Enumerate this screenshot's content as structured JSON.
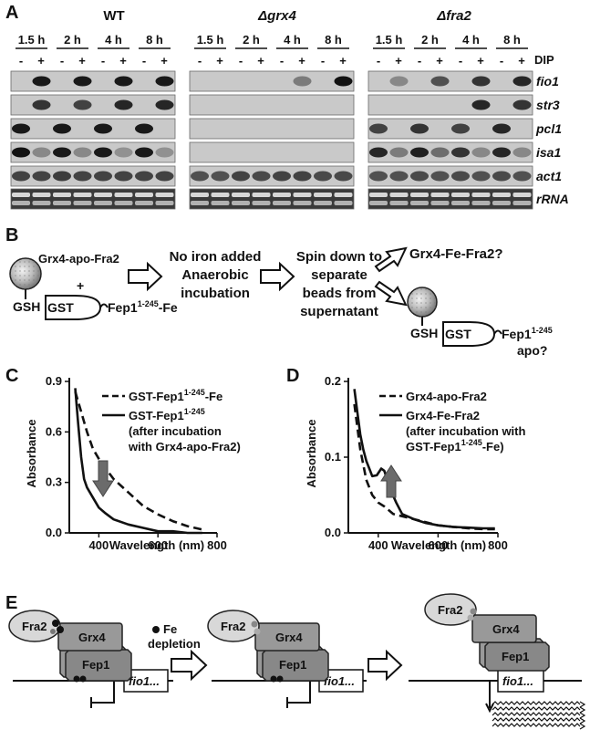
{
  "panel_a": {
    "label": "A",
    "strains": [
      "WT",
      "Δgrx4",
      "Δfra2"
    ],
    "time_points": [
      "1.5 h",
      "2 h",
      "4 h",
      "8 h"
    ],
    "treatment_signs": [
      "-",
      "+"
    ],
    "treatment_label": "DIP",
    "genes": [
      "fio1",
      "str3",
      "pcl1",
      "isa1",
      "act1",
      "rRNA"
    ]
  },
  "panel_b": {
    "label": "B",
    "complex_top": "Grx4-apo-Fra2",
    "plus": "+",
    "gsh": "GSH",
    "gst": "GST",
    "fep_left": "Fep1",
    "fep_left_sup": "1-245",
    "fep_left_suffix": "-Fe",
    "step1_line1": "No iron added",
    "step1_line2": "Anaerobic",
    "step1_line3": "incubation",
    "step2_line1": "Spin down to",
    "step2_line2": "separate",
    "step2_line3": "beads from",
    "step2_line4": "supernatant",
    "outcome1": "Grx4-Fe-Fra2?",
    "fep_right": "Fep1",
    "fep_right_sup": "1-245",
    "outcome2_suffix": "apo?"
  },
  "panel_c": {
    "label": "C",
    "legend_dashed_main": "GST-Fep1",
    "legend_dashed_sup": "1-245",
    "legend_dashed_suffix": "-Fe",
    "legend_solid_line1_main": "GST-Fep1",
    "legend_solid_line1_sup": "1-245",
    "legend_solid_line2": "(after incubation",
    "legend_solid_line3": "with Grx4-apo-Fra2)",
    "y_ticks": [
      "0.0",
      "0.3",
      "0.6",
      "0.9"
    ],
    "x_ticks": [
      "400",
      "600",
      "800"
    ]
  },
  "panel_d": {
    "label": "D",
    "legend_dashed": "Grx4-apo-Fra2",
    "legend_solid_line1": "Grx4-Fe-Fra2",
    "legend_solid_line2": "(after incubation with",
    "legend_solid_line3_main": "GST-Fep1",
    "legend_solid_line3_sup": "1-245",
    "legend_solid_line3_suffix": "-Fe)",
    "y_ticks": [
      "0.0",
      "0.1",
      "0.2"
    ],
    "x_ticks": [
      "400",
      "600",
      "800"
    ]
  },
  "panel_e": {
    "label": "E",
    "fra2": "Fra2",
    "grx4": "Grx4",
    "fep1": "Fep1",
    "fio1": "fio1...",
    "fe_label": "Fe",
    "depletion_label": "depletion"
  },
  "chart_data": [
    {
      "type": "line",
      "panel": "C",
      "xlabel": "Wavelength (nm)",
      "ylabel": "Absorbance",
      "xlim": [
        300,
        800
      ],
      "ylim": [
        0,
        0.9
      ],
      "x_ticks": [
        400,
        600,
        800
      ],
      "y_ticks": [
        0.0,
        0.3,
        0.6,
        0.9
      ],
      "series": [
        {
          "name": "GST-Fep1 1-245 -Fe",
          "style": "dashed",
          "x": [
            320,
            330,
            340,
            350,
            360,
            380,
            400,
            420,
            450,
            500,
            550,
            600,
            650,
            700,
            750
          ],
          "y": [
            0.84,
            0.78,
            0.72,
            0.66,
            0.6,
            0.5,
            0.44,
            0.39,
            0.32,
            0.24,
            0.16,
            0.11,
            0.07,
            0.04,
            0.02
          ]
        },
        {
          "name": "GST-Fep1 1-245 (after incubation with Grx4-apo-Fra2)",
          "style": "solid",
          "x": [
            320,
            330,
            340,
            350,
            360,
            380,
            400,
            420,
            450,
            500,
            550,
            600,
            650,
            700,
            750
          ],
          "y": [
            0.86,
            0.65,
            0.45,
            0.32,
            0.27,
            0.21,
            0.15,
            0.12,
            0.08,
            0.05,
            0.03,
            0.01,
            0.01,
            0.0,
            0.0
          ]
        }
      ]
    },
    {
      "type": "line",
      "panel": "D",
      "xlabel": "Wavelength (nm)",
      "ylabel": "Absorbance",
      "xlim": [
        300,
        800
      ],
      "ylim": [
        0,
        0.2
      ],
      "x_ticks": [
        400,
        600,
        800
      ],
      "y_ticks": [
        0.0,
        0.1,
        0.2
      ],
      "series": [
        {
          "name": "Grx4-apo-Fra2",
          "style": "dashed",
          "x": [
            320,
            330,
            340,
            350,
            360,
            380,
            400,
            420,
            450,
            500,
            550,
            600,
            650,
            700,
            750,
            790
          ],
          "y": [
            0.17,
            0.14,
            0.11,
            0.09,
            0.07,
            0.05,
            0.04,
            0.035,
            0.025,
            0.02,
            0.015,
            0.01,
            0.008,
            0.006,
            0.005,
            0.005
          ]
        },
        {
          "name": "Grx4-Fe-Fra2 (after incubation with GST-Fep1 1-245 -Fe)",
          "style": "solid",
          "x": [
            320,
            330,
            340,
            350,
            360,
            370,
            380,
            395,
            410,
            420,
            440,
            460,
            480,
            520,
            560,
            600,
            650,
            700,
            750,
            790
          ],
          "y": [
            0.19,
            0.16,
            0.13,
            0.11,
            0.095,
            0.085,
            0.075,
            0.076,
            0.085,
            0.082,
            0.058,
            0.04,
            0.025,
            0.018,
            0.013,
            0.01,
            0.008,
            0.007,
            0.006,
            0.006
          ]
        }
      ]
    }
  ]
}
